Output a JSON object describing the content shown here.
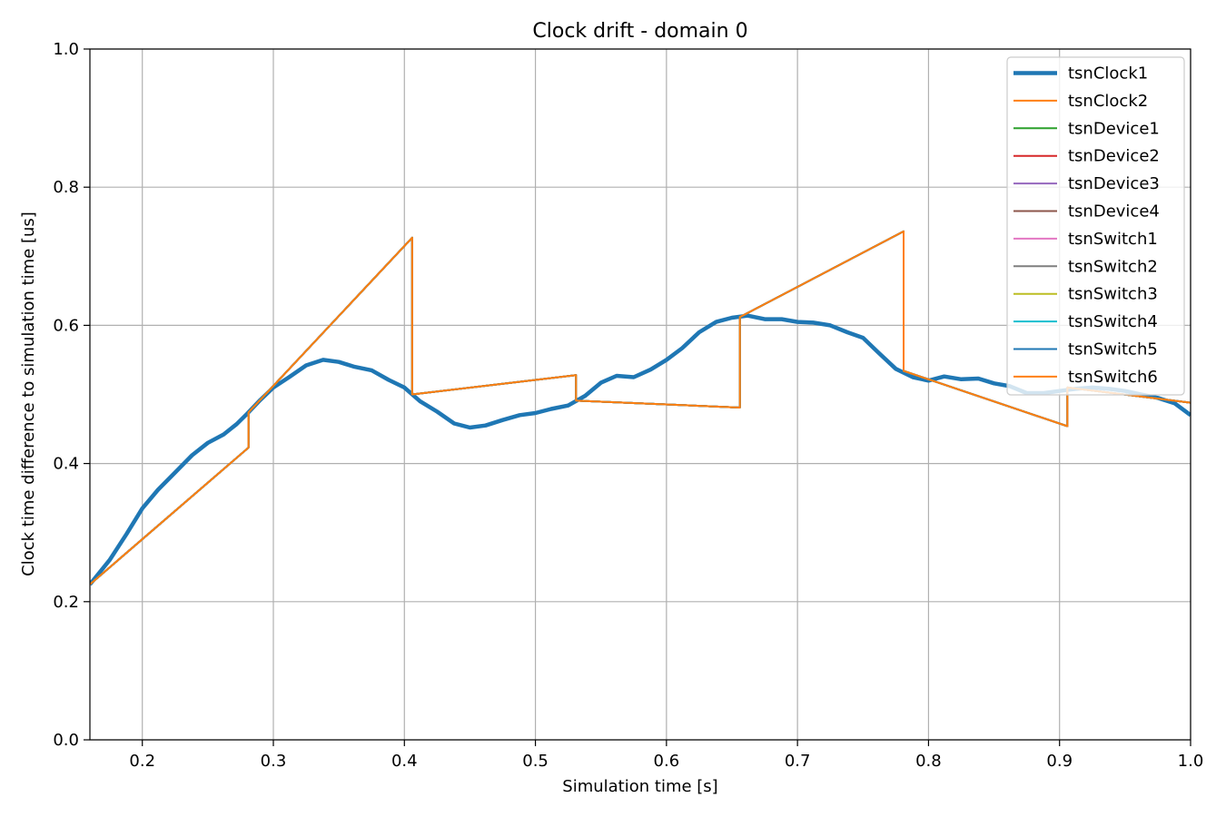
{
  "chart_data": {
    "type": "line",
    "title": "Clock drift - domain 0",
    "xlabel": "Simulation time [s]",
    "ylabel": "Clock time difference to simulation time [us]",
    "xlim": [
      0.16,
      1.0
    ],
    "ylim": [
      0.0,
      1.0
    ],
    "xticks": [
      "0.2",
      "0.3",
      "0.4",
      "0.5",
      "0.6",
      "0.7",
      "0.8",
      "0.9",
      "1.0"
    ],
    "yticks": [
      "0.0",
      "0.2",
      "0.4",
      "0.6",
      "0.8",
      "1.0"
    ],
    "grid": true,
    "legend_position": "top-right",
    "series": [
      {
        "name": "tsnClock1",
        "color": "#1f77b4",
        "x": [
          0.16,
          0.175,
          0.188,
          0.2,
          0.212,
          0.225,
          0.238,
          0.25,
          0.262,
          0.272,
          0.28,
          0.29,
          0.3,
          0.312,
          0.325,
          0.338,
          0.35,
          0.362,
          0.375,
          0.388,
          0.4,
          0.412,
          0.425,
          0.438,
          0.45,
          0.462,
          0.475,
          0.488,
          0.5,
          0.512,
          0.525,
          0.538,
          0.55,
          0.562,
          0.575,
          0.588,
          0.6,
          0.612,
          0.625,
          0.638,
          0.65,
          0.662,
          0.675,
          0.688,
          0.7,
          0.712,
          0.725,
          0.738,
          0.75,
          0.762,
          0.775,
          0.788,
          0.8,
          0.812,
          0.825,
          0.838,
          0.85,
          0.862,
          0.875,
          0.888,
          0.9,
          0.912,
          0.925,
          0.938,
          0.95,
          0.962,
          0.975,
          0.988,
          1.0
        ],
        "y": [
          0.225,
          0.26,
          0.298,
          0.335,
          0.362,
          0.387,
          0.412,
          0.43,
          0.442,
          0.457,
          0.472,
          0.492,
          0.51,
          0.525,
          0.542,
          0.55,
          0.547,
          0.54,
          0.535,
          0.521,
          0.51,
          0.49,
          0.475,
          0.458,
          0.452,
          0.455,
          0.463,
          0.47,
          0.473,
          0.479,
          0.484,
          0.498,
          0.517,
          0.527,
          0.525,
          0.536,
          0.55,
          0.567,
          0.59,
          0.605,
          0.611,
          0.614,
          0.609,
          0.609,
          0.605,
          0.604,
          0.6,
          0.59,
          0.582,
          0.56,
          0.537,
          0.525,
          0.52,
          0.526,
          0.522,
          0.523,
          0.516,
          0.512,
          0.502,
          0.502,
          0.505,
          0.508,
          0.51,
          0.508,
          0.505,
          0.5,
          0.495,
          0.487,
          0.47
        ]
      },
      {
        "name": "tsnClock2",
        "color": "#ff7f0e",
        "x": [
          0.16,
          0.281,
          0.281,
          0.406,
          0.406,
          0.531,
          0.531,
          0.656,
          0.656,
          0.781,
          0.781,
          0.906,
          0.906,
          1.0
        ],
        "y": [
          0.225,
          0.423,
          0.474,
          0.727,
          0.5,
          0.528,
          0.491,
          0.481,
          0.612,
          0.736,
          0.534,
          0.454,
          0.51,
          0.488
        ]
      },
      {
        "name": "tsnDevice1",
        "color": "#2ca02c"
      },
      {
        "name": "tsnDevice2",
        "color": "#d62728"
      },
      {
        "name": "tsnDevice3",
        "color": "#9467bd"
      },
      {
        "name": "tsnDevice4",
        "color": "#8c564b"
      },
      {
        "name": "tsnSwitch1",
        "color": "#e377c2"
      },
      {
        "name": "tsnSwitch2",
        "color": "#7f7f7f"
      },
      {
        "name": "tsnSwitch3",
        "color": "#bcbd22"
      },
      {
        "name": "tsnSwitch4",
        "color": "#17becf"
      },
      {
        "name": "tsnSwitch5",
        "color": "#1f77b4"
      },
      {
        "name": "tsnSwitch6",
        "color": "#ff7f0e"
      }
    ]
  }
}
